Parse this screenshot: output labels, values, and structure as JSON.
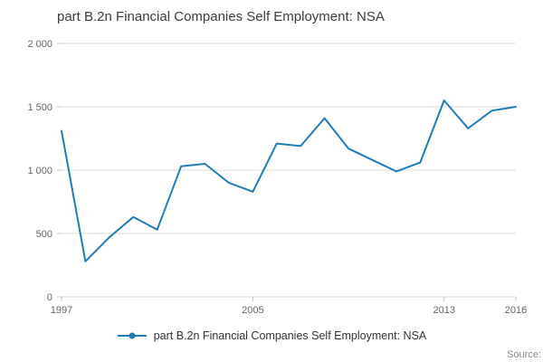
{
  "chart": {
    "title": "part B.2n Financial Companies Self Employment: NSA",
    "legend_label": "part B.2n Financial Companies Self Employment: NSA",
    "source_label": "Source:",
    "line_color": "#1e7cb8",
    "grid_color": "#d9d9d9",
    "tick_color": "#c4c4c4",
    "axis_text_color": "#666666",
    "title_color": "#3c3c3c"
  },
  "chart_data": {
    "type": "line",
    "title": "part B.2n Financial Companies Self Employment: NSA",
    "xlabel": "",
    "ylabel": "",
    "x": [
      1997,
      1998,
      1999,
      2000,
      2001,
      2002,
      2003,
      2004,
      2005,
      2006,
      2007,
      2008,
      2009,
      2010,
      2011,
      2012,
      2013,
      2014,
      2015,
      2016
    ],
    "values": [
      1310,
      280,
      470,
      630,
      530,
      1030,
      1050,
      900,
      830,
      1210,
      1190,
      1410,
      1170,
      1080,
      990,
      1060,
      1550,
      1330,
      1470,
      1500
    ],
    "series_name": "part B.2n Financial Companies Self Employment: NSA",
    "ylim": [
      0,
      2000
    ],
    "yticks": [
      {
        "value": 0,
        "label": "0"
      },
      {
        "value": 500,
        "label": "500"
      },
      {
        "value": 1000,
        "label": "1 000"
      },
      {
        "value": 1500,
        "label": "1 500"
      },
      {
        "value": 2000,
        "label": "2 000"
      }
    ],
    "xtick_labels": [
      1997,
      2005,
      2013,
      2016
    ],
    "grid": "horizontal",
    "legend_position": "bottom"
  }
}
